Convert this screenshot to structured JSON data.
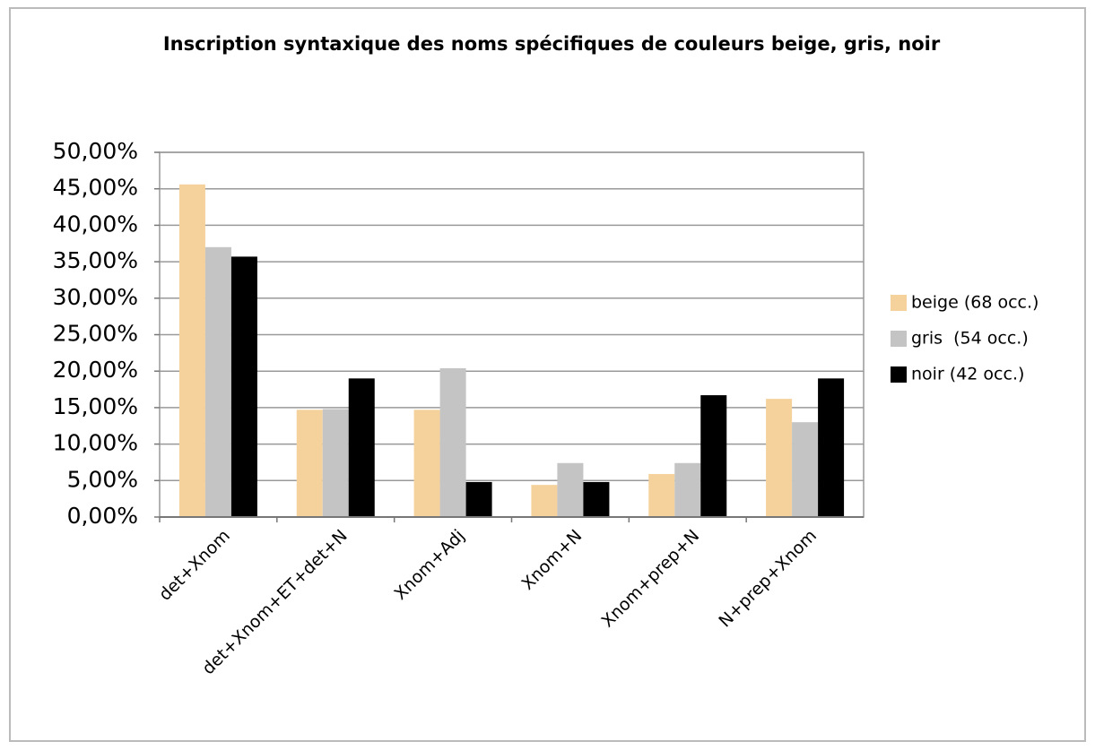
{
  "chart_data": {
    "type": "bar",
    "title": "Inscription syntaxique des noms spécifiques de couleurs beige, gris, noir",
    "categories": [
      "det+Xnom",
      "det+Xnom+ET+det+N",
      "Xnom+Adj",
      "Xnom+N",
      "Xnom+prep+N",
      "N+prep+Xnom"
    ],
    "series": [
      {
        "name": "beige (68 occ.)",
        "color": "#f5d19b",
        "values": [
          45.6,
          14.7,
          14.7,
          4.4,
          5.9,
          16.2
        ]
      },
      {
        "name": "gris  (54 occ.)",
        "color": "#c4c4c4",
        "values": [
          37.0,
          14.8,
          20.4,
          7.4,
          7.4,
          13.0
        ]
      },
      {
        "name": "noir (42 occ.)",
        "color": "#000000",
        "values": [
          35.7,
          19.0,
          4.8,
          4.8,
          16.7,
          19.0
        ]
      }
    ],
    "ylim": [
      0,
      50
    ],
    "yticks": [
      {
        "value": 0,
        "label": "0,00%"
      },
      {
        "value": 5,
        "label": "5,00%"
      },
      {
        "value": 10,
        "label": "10,00%"
      },
      {
        "value": 15,
        "label": "15,00%"
      },
      {
        "value": 20,
        "label": "20,00%"
      },
      {
        "value": 25,
        "label": "25,00%"
      },
      {
        "value": 30,
        "label": "30,00%"
      },
      {
        "value": 35,
        "label": "35,00%"
      },
      {
        "value": 40,
        "label": "40,00%"
      },
      {
        "value": 45,
        "label": "45,00%"
      },
      {
        "value": 50,
        "label": "50,00%"
      }
    ],
    "grid": true,
    "legend": "right"
  }
}
